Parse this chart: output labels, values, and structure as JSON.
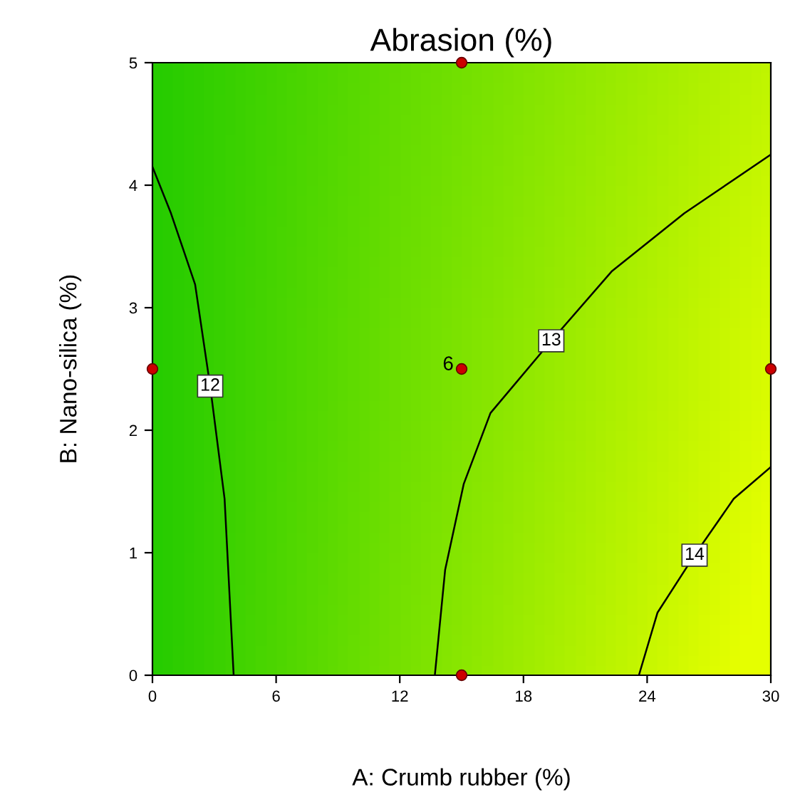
{
  "chart_data": {
    "type": "line",
    "title": "Abrasion (%)",
    "xlabel": "A: Crumb rubber (%)",
    "ylabel": "B: Nano-silica (%)",
    "xlim": [
      0,
      30
    ],
    "xticks": [
      0,
      6,
      12,
      18,
      24,
      30
    ],
    "ylim": [
      0,
      5
    ],
    "yticks": [
      0,
      1,
      2,
      3,
      4,
      5
    ],
    "grid": false,
    "legend": false,
    "series": [
      {
        "name": "12",
        "color": "#000000",
        "x": [
          0,
          0.9,
          2.07,
          2.8,
          3.5,
          3.94
        ],
        "values": [
          4.15,
          3.77,
          3.19,
          2.36,
          1.44,
          0
        ]
      },
      {
        "name": "13",
        "color": "#000000",
        "x": [
          13.7,
          14.2,
          15.1,
          16.4,
          19.35,
          22.3,
          25.8,
          30
        ],
        "values": [
          0,
          0.86,
          1.56,
          2.14,
          2.73,
          3.3,
          3.77,
          4.25
        ]
      },
      {
        "name": "14",
        "color": "#000000",
        "x": [
          23.6,
          24.5,
          26.3,
          28.2,
          30
        ],
        "values": [
          0,
          0.51,
          0.98,
          1.44,
          1.7
        ]
      },
      {
        "type": "scatter",
        "color": "#cc0000",
        "marker": "circle",
        "x": [
          0,
          15,
          15,
          30,
          15
        ],
        "values": [
          2.5,
          5,
          2.5,
          2.5,
          0
        ]
      }
    ],
    "annotations": [
      {
        "text": "6",
        "x": 15,
        "y": 2.5
      }
    ]
  }
}
